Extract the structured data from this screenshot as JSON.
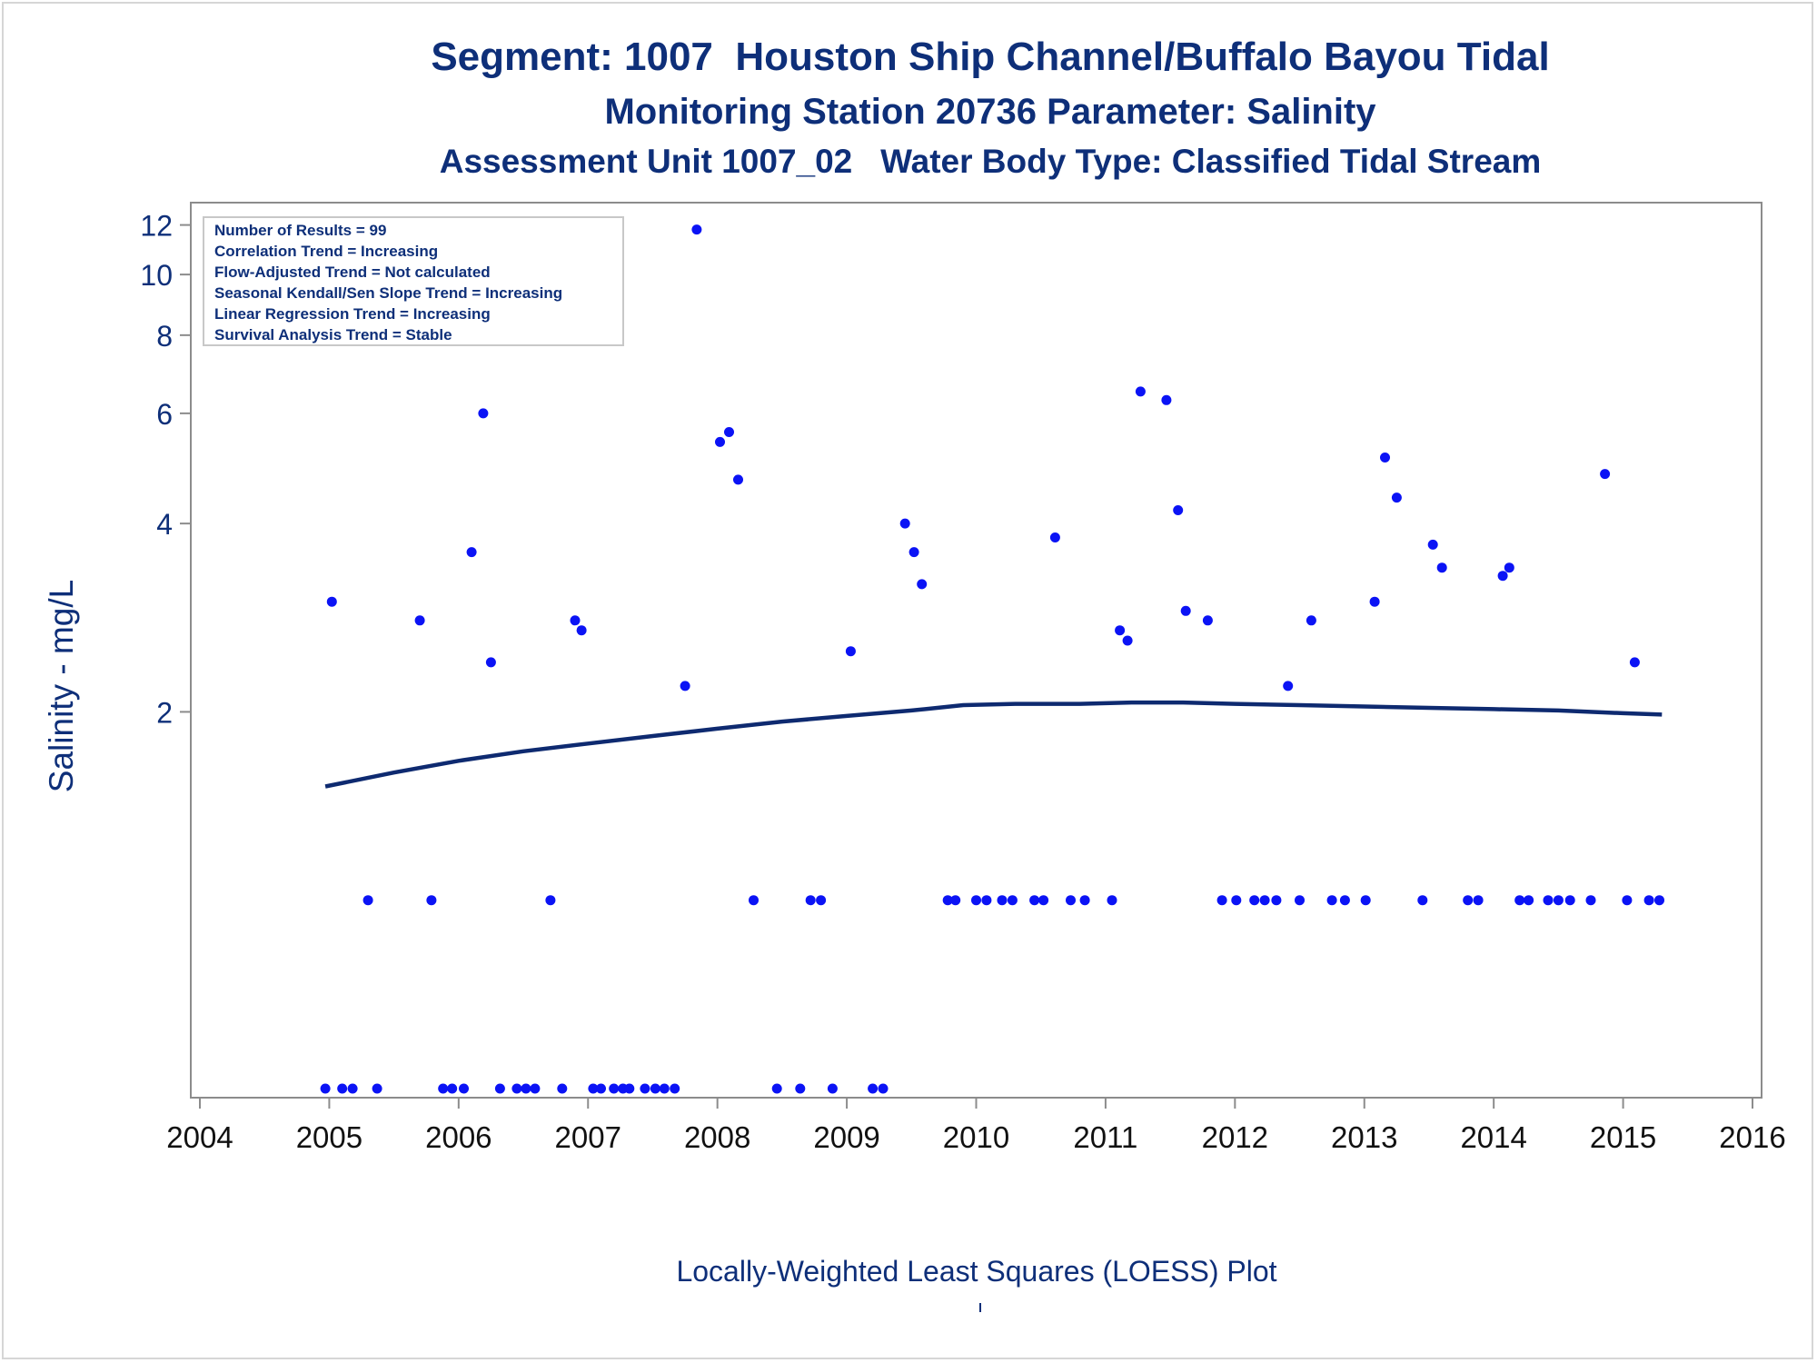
{
  "titles": {
    "line1": "Segment: 1007  Houston Ship Channel/Buffalo Bayou Tidal",
    "line2": "Monitoring Station 20736 Parameter: Salinity",
    "line3": "Assessment Unit 1007_02   Water Body Type: Classified Tidal Stream"
  },
  "footnote": "Locally-Weighted Least Squares (LOESS) Plot",
  "colors": {
    "text": "#0e2f79",
    "points": "#0b13f5",
    "loess_line": "#0e2a70",
    "axis": "#8c8c8c",
    "frame": "#d6d6d6"
  },
  "chart_data": {
    "type": "scatter",
    "y_scale": "log",
    "ylabel": "Salinity - mg/L",
    "xlabel": "",
    "xlim": [
      2004,
      2016
    ],
    "ylim": [
      0.5,
      12.6
    ],
    "x_ticks": [
      "2004",
      "2005",
      "2006",
      "2007",
      "2008",
      "2009",
      "2010",
      "2011",
      "2012",
      "2013",
      "2014",
      "2015",
      "2016"
    ],
    "y_ticks": [
      2,
      4,
      6,
      8,
      10,
      12
    ],
    "inset_legend": [
      "Number of Results = 99",
      "Correlation Trend = Increasing",
      "Flow-Adjusted Trend = Not calculated",
      "Seasonal Kendall/Sen Slope Trend = Increasing",
      "Linear Regression Trend = Increasing",
      "Survival Analysis Trend = Stable"
    ],
    "points": [
      [
        2004.97,
        0.5
      ],
      [
        2005.02,
        3.0
      ],
      [
        2005.1,
        0.5
      ],
      [
        2005.18,
        0.5
      ],
      [
        2005.3,
        1.0
      ],
      [
        2005.37,
        0.5
      ],
      [
        2005.7,
        2.8
      ],
      [
        2005.79,
        1.0
      ],
      [
        2005.88,
        0.5
      ],
      [
        2005.95,
        0.5
      ],
      [
        2006.04,
        0.5
      ],
      [
        2006.1,
        3.6
      ],
      [
        2006.19,
        6.0
      ],
      [
        2006.25,
        2.4
      ],
      [
        2006.32,
        0.5
      ],
      [
        2006.45,
        0.5
      ],
      [
        2006.52,
        0.5
      ],
      [
        2006.59,
        0.5
      ],
      [
        2006.71,
        1.0
      ],
      [
        2006.8,
        0.5
      ],
      [
        2006.9,
        2.8
      ],
      [
        2006.95,
        2.7
      ],
      [
        2007.04,
        0.5
      ],
      [
        2007.1,
        0.5
      ],
      [
        2007.2,
        0.5
      ],
      [
        2007.27,
        0.5
      ],
      [
        2007.32,
        0.5
      ],
      [
        2007.44,
        0.5
      ],
      [
        2007.52,
        0.5
      ],
      [
        2007.59,
        0.5
      ],
      [
        2007.67,
        0.5
      ],
      [
        2007.75,
        2.2
      ],
      [
        2007.84,
        11.8
      ],
      [
        2008.02,
        5.4
      ],
      [
        2008.09,
        5.6
      ],
      [
        2008.16,
        4.7
      ],
      [
        2008.28,
        1.0
      ],
      [
        2008.46,
        0.5
      ],
      [
        2008.64,
        0.5
      ],
      [
        2008.72,
        1.0
      ],
      [
        2008.8,
        1.0
      ],
      [
        2008.89,
        0.5
      ],
      [
        2009.03,
        2.5
      ],
      [
        2009.2,
        0.5
      ],
      [
        2009.28,
        0.5
      ],
      [
        2009.45,
        4.0
      ],
      [
        2009.52,
        3.6
      ],
      [
        2009.58,
        3.2
      ],
      [
        2009.78,
        1.0
      ],
      [
        2009.84,
        1.0
      ],
      [
        2010.0,
        1.0
      ],
      [
        2010.08,
        1.0
      ],
      [
        2010.2,
        1.0
      ],
      [
        2010.28,
        1.0
      ],
      [
        2010.45,
        1.0
      ],
      [
        2010.52,
        1.0
      ],
      [
        2010.61,
        3.8
      ],
      [
        2010.73,
        1.0
      ],
      [
        2010.84,
        1.0
      ],
      [
        2011.05,
        1.0
      ],
      [
        2011.11,
        2.7
      ],
      [
        2011.17,
        2.6
      ],
      [
        2011.27,
        6.5
      ],
      [
        2011.47,
        6.3
      ],
      [
        2011.56,
        4.2
      ],
      [
        2011.62,
        2.9
      ],
      [
        2011.79,
        2.8
      ],
      [
        2011.9,
        1.0
      ],
      [
        2012.01,
        1.0
      ],
      [
        2012.15,
        1.0
      ],
      [
        2012.23,
        1.0
      ],
      [
        2012.32,
        1.0
      ],
      [
        2012.41,
        2.2
      ],
      [
        2012.5,
        1.0
      ],
      [
        2012.59,
        2.8
      ],
      [
        2012.75,
        1.0
      ],
      [
        2012.85,
        1.0
      ],
      [
        2013.01,
        1.0
      ],
      [
        2013.08,
        3.0
      ],
      [
        2013.16,
        5.1
      ],
      [
        2013.25,
        4.4
      ],
      [
        2013.45,
        1.0
      ],
      [
        2013.53,
        3.7
      ],
      [
        2013.6,
        3.4
      ],
      [
        2013.8,
        1.0
      ],
      [
        2013.88,
        1.0
      ],
      [
        2014.07,
        3.3
      ],
      [
        2014.12,
        3.4
      ],
      [
        2014.2,
        1.0
      ],
      [
        2014.27,
        1.0
      ],
      [
        2014.42,
        1.0
      ],
      [
        2014.5,
        1.0
      ],
      [
        2014.59,
        1.0
      ],
      [
        2014.75,
        1.0
      ],
      [
        2014.86,
        4.8
      ],
      [
        2015.03,
        1.0
      ],
      [
        2015.09,
        2.4
      ],
      [
        2015.2,
        1.0
      ],
      [
        2015.28,
        1.0
      ]
    ],
    "loess_series": {
      "x": [
        2004.97,
        2005.5,
        2006.0,
        2006.5,
        2007.0,
        2007.5,
        2008.0,
        2008.5,
        2009.0,
        2009.5,
        2009.9,
        2010.3,
        2010.8,
        2011.2,
        2011.6,
        2012.0,
        2012.5,
        2013.0,
        2013.5,
        2014.0,
        2014.5,
        2015.0,
        2015.3
      ],
      "y": [
        1.52,
        1.6,
        1.67,
        1.73,
        1.78,
        1.83,
        1.88,
        1.93,
        1.97,
        2.01,
        2.05,
        2.06,
        2.06,
        2.07,
        2.07,
        2.06,
        2.05,
        2.04,
        2.03,
        2.02,
        2.01,
        1.99,
        1.98
      ]
    }
  }
}
